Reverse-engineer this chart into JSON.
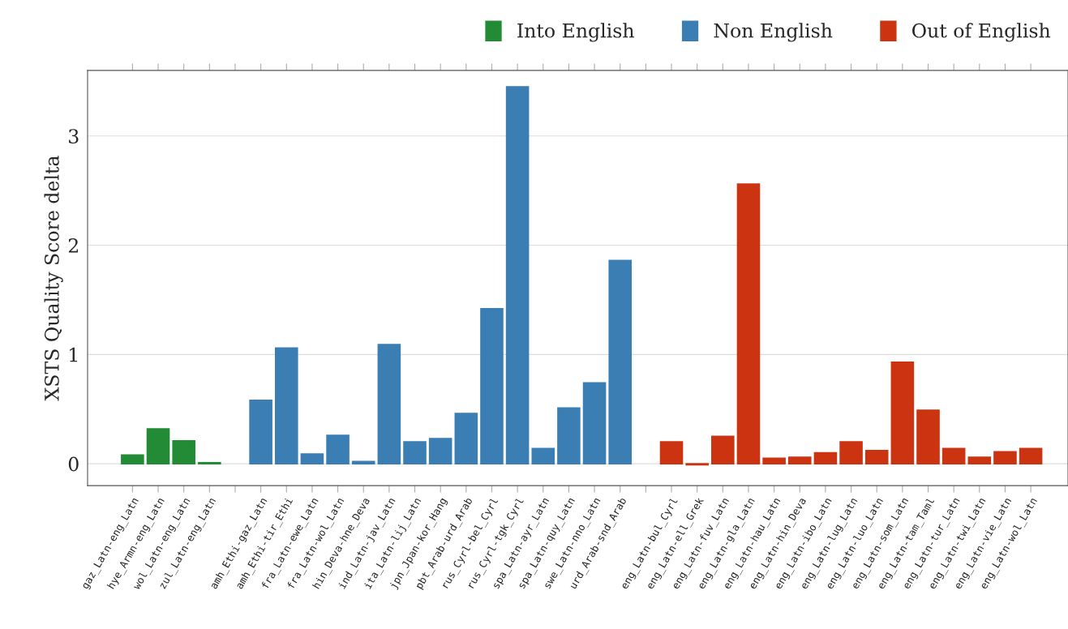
{
  "chart_data": {
    "type": "bar",
    "ylabel": "XSTS Quality Score delta",
    "categories": [
      "gaz_Latn-eng_Latn",
      "hye_Armn-eng_Latn",
      "wol_Latn-eng_Latn",
      "zul_Latn-eng_Latn",
      null,
      "amh_Ethi-gaz_Latn",
      "amh_Ethi-tir_Ethi",
      "fra_Latn-ewe_Latn",
      "fra_Latn-wol_Latn",
      "hin_Deva-hne_Deva",
      "ind_Latn-jav_Latn",
      "ita_Latn-lij_Latn",
      "jpn_Jpan-kor_Hang",
      "pbt_Arab-urd_Arab",
      "rus_Cyrl-bel_Cyrl",
      "rus_Cyrl-tgk_Cyrl",
      "spa_Latn-ayr_Latn",
      "spa_Latn-quy_Latn",
      "swe_Latn-nno_Latn",
      "urd_Arab-snd_Arab",
      null,
      "eng_Latn-bul_Cyrl",
      "eng_Latn-ell_Grek",
      "eng_Latn-fuv_Latn",
      "eng_Latn-gla_Latn",
      "eng_Latn-hau_Latn",
      "eng_Latn-hin_Deva",
      "eng_Latn-ibo_Latn",
      "eng_Latn-lug_Latn",
      "eng_Latn-luo_Latn",
      "eng_Latn-som_Latn",
      "eng_Latn-tam_Taml",
      "eng_Latn-tur_Latn",
      "eng_Latn-twi_Latn",
      "eng_Latn-vie_Latn",
      "eng_Latn-wol_Latn"
    ],
    "series": [
      {
        "name": "Into English",
        "color": "#238b36",
        "values": [
          0.08,
          0.32,
          0.21,
          0.01,
          null,
          null,
          null,
          null,
          null,
          null,
          null,
          null,
          null,
          null,
          null,
          null,
          null,
          null,
          null,
          null,
          null,
          null,
          null,
          null,
          null,
          null,
          null,
          null,
          null,
          null,
          null,
          null,
          null,
          null,
          null,
          null
        ]
      },
      {
        "name": "Non English",
        "color": "#3a7eb4",
        "values": [
          null,
          null,
          null,
          null,
          null,
          0.58,
          1.06,
          0.09,
          0.26,
          0.02,
          1.09,
          0.2,
          0.23,
          0.46,
          1.42,
          3.45,
          0.14,
          0.51,
          0.74,
          1.86,
          null,
          null,
          null,
          null,
          null,
          null,
          null,
          null,
          null,
          null,
          null,
          null,
          null,
          null,
          null,
          null
        ]
      },
      {
        "name": "Out of English",
        "color": "#cc3311",
        "values": [
          null,
          null,
          null,
          null,
          null,
          null,
          null,
          null,
          null,
          null,
          null,
          null,
          null,
          null,
          null,
          null,
          null,
          null,
          null,
          null,
          null,
          0.2,
          -0.01,
          0.25,
          2.56,
          0.05,
          0.06,
          0.1,
          0.2,
          0.12,
          0.93,
          0.49,
          0.14,
          0.06,
          0.11,
          0.14
        ]
      }
    ],
    "ylim": [
      -0.2,
      3.6
    ],
    "yticks": [
      0,
      1,
      2,
      3
    ],
    "grid": "y",
    "legend": "top right"
  }
}
